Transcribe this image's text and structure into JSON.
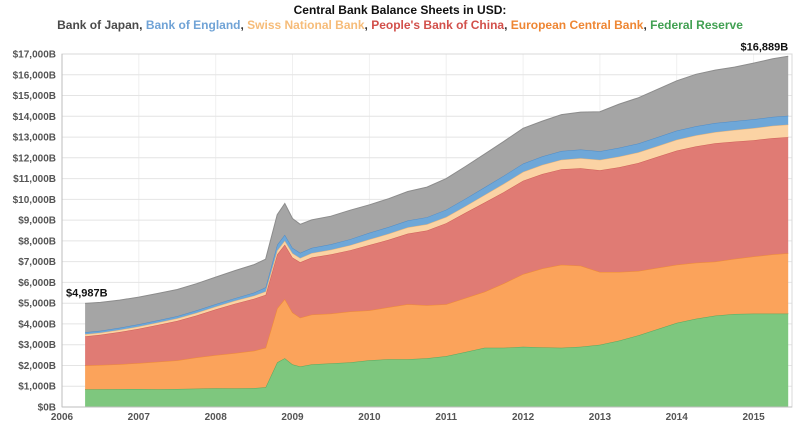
{
  "title": "Central Bank Balance Sheets in USD:",
  "chart_data": {
    "type": "area",
    "stacked": true,
    "title": "Central Bank Balance Sheets in USD:",
    "grid": true,
    "legend_position": "top",
    "xlim": [
      2006,
      2015.5
    ],
    "ylim": [
      0,
      17000
    ],
    "xticks": [
      2006,
      2007,
      2008,
      2009,
      2010,
      2011,
      2012,
      2013,
      2014,
      2015
    ],
    "ytick_labels": [
      "$0B",
      "$1,000B",
      "$2,000B",
      "$3,000B",
      "$4,000B",
      "$5,000B",
      "$6,000B",
      "$7,000B",
      "$8,000B",
      "$9,000B",
      "$10,000B",
      "$11,000B",
      "$12,000B",
      "$13,000B",
      "$14,000B",
      "$15,000B",
      "$16,000B",
      "$17,000B"
    ],
    "ytick_step": 1000,
    "x": [
      2006.3,
      2006.5,
      2006.75,
      2007,
      2007.25,
      2007.5,
      2007.75,
      2008,
      2008.25,
      2008.5,
      2008.65,
      2008.8,
      2008.9,
      2009,
      2009.1,
      2009.25,
      2009.5,
      2009.75,
      2010,
      2010.25,
      2010.5,
      2010.75,
      2011,
      2011.25,
      2011.5,
      2011.75,
      2012,
      2012.25,
      2012.5,
      2012.75,
      2013,
      2013.25,
      2013.5,
      2013.75,
      2014,
      2014.25,
      2014.5,
      2014.75,
      2015,
      2015.25,
      2015.45
    ],
    "series": [
      {
        "name": "Federal Reserve",
        "fill": "#7ec77e",
        "line": "#57a95f",
        "values": [
          850,
          855,
          860,
          865,
          855,
          865,
          885,
          900,
          895,
          910,
          950,
          2150,
          2350,
          2050,
          1950,
          2050,
          2100,
          2150,
          2250,
          2300,
          2300,
          2350,
          2450,
          2650,
          2850,
          2850,
          2900,
          2870,
          2850,
          2900,
          3000,
          3200,
          3450,
          3750,
          4050,
          4250,
          4400,
          4480,
          4500,
          4500,
          4500
        ]
      },
      {
        "name": "European Central Bank",
        "fill": "#fba35b",
        "line": "#ef8c33",
        "values": [
          1150,
          1170,
          1200,
          1250,
          1320,
          1380,
          1500,
          1600,
          1700,
          1800,
          1900,
          2600,
          2850,
          2500,
          2350,
          2400,
          2400,
          2450,
          2400,
          2500,
          2650,
          2550,
          2500,
          2600,
          2700,
          3100,
          3500,
          3800,
          4000,
          3900,
          3500,
          3300,
          3100,
          2950,
          2800,
          2700,
          2600,
          2650,
          2750,
          2850,
          2900
        ]
      },
      {
        "name": "People's Bank of China",
        "fill": "#e07b74",
        "line": "#cf5f58",
        "values": [
          1400,
          1450,
          1550,
          1650,
          1780,
          1900,
          2020,
          2200,
          2380,
          2500,
          2550,
          2600,
          2620,
          2650,
          2670,
          2750,
          2850,
          2950,
          3150,
          3250,
          3400,
          3600,
          3900,
          4100,
          4300,
          4400,
          4500,
          4550,
          4600,
          4700,
          4900,
          5050,
          5200,
          5350,
          5500,
          5600,
          5700,
          5650,
          5600,
          5600,
          5600
        ]
      },
      {
        "name": "Swiss National Bank",
        "fill": "#fbd3a4",
        "line": "#edb678",
        "values": [
          100,
          100,
          105,
          110,
          115,
          120,
          125,
          135,
          140,
          150,
          160,
          180,
          190,
          200,
          200,
          210,
          220,
          240,
          270,
          290,
          300,
          300,
          300,
          320,
          360,
          400,
          420,
          440,
          460,
          480,
          500,
          510,
          510,
          515,
          520,
          530,
          540,
          560,
          580,
          590,
          600
        ]
      },
      {
        "name": "Bank of England",
        "fill": "#6ea7d8",
        "line": "#4f8cc7",
        "values": [
          100,
          100,
          105,
          110,
          110,
          115,
          120,
          120,
          125,
          150,
          200,
          280,
          290,
          260,
          250,
          250,
          270,
          290,
          320,
          330,
          330,
          340,
          350,
          360,
          370,
          390,
          400,
          410,
          420,
          420,
          420,
          425,
          430,
          435,
          440,
          440,
          435,
          430,
          430,
          430,
          430
        ]
      },
      {
        "name": "Bank of Japan",
        "fill": "#a5a5a5",
        "line": "#8c8c8c",
        "values": [
          1387,
          1360,
          1330,
          1310,
          1290,
          1280,
          1290,
          1300,
          1330,
          1350,
          1360,
          1450,
          1500,
          1420,
          1380,
          1350,
          1350,
          1400,
          1350,
          1360,
          1400,
          1450,
          1500,
          1550,
          1600,
          1650,
          1700,
          1700,
          1750,
          1800,
          1900,
          2100,
          2200,
          2300,
          2400,
          2500,
          2550,
          2600,
          2700,
          2800,
          2859
        ]
      }
    ],
    "legend": [
      {
        "label": "Bank of Japan",
        "color": "#4a4a4a"
      },
      {
        "label": "Bank of England",
        "color": "#70a3d6"
      },
      {
        "label": "Swiss National Bank",
        "color": "#f6bc79"
      },
      {
        "label": "People's Bank of China",
        "color": "#d2504b"
      },
      {
        "label": "European Central Bank",
        "color": "#ee8633"
      },
      {
        "label": "Federal Reserve",
        "color": "#41a052"
      }
    ],
    "legend_separator": ", ",
    "annotations": [
      {
        "text": "$4,987B",
        "position": "start"
      },
      {
        "text": "$16,889B",
        "position": "end"
      }
    ]
  }
}
